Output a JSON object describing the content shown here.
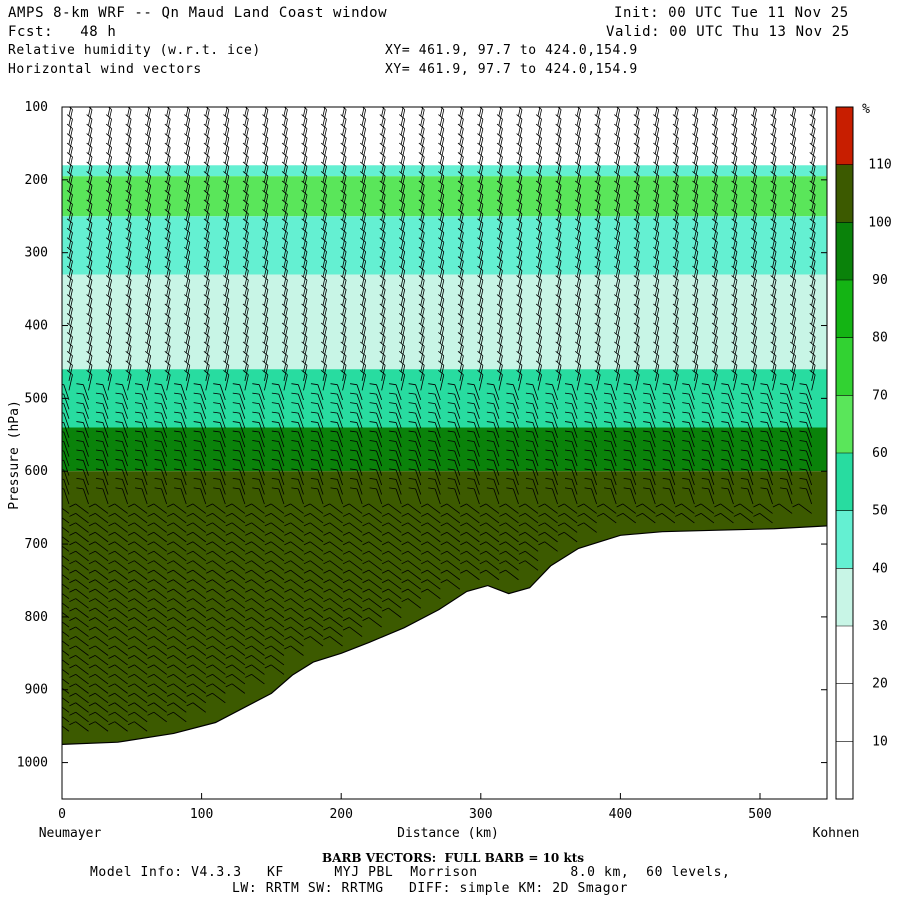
{
  "header": {
    "line1_left": "AMPS 8-km WRF -- Qn Maud Land Coast window",
    "line2_left": "Fcst:   48 h",
    "line3_left": "Relative humidity (w.r.t. ice)",
    "line4_left": "Horizontal wind vectors",
    "line1_right": "Init: 00 UTC Tue 11 Nov 25",
    "line2_right": "Valid: 00 UTC Thu 13 Nov 25",
    "line3_mid": "XY= 461.9, 97.7 to 424.0,154.9",
    "line4_mid": "XY= 461.9, 97.7 to 424.0,154.9"
  },
  "footer": {
    "barb_note": "BARB VECTORS:  FULL BARB = 10 kts",
    "model_info_1": "Model Info: V4.3.3   KF      MYJ PBL  Morrison           8.0 km,  60 levels,",
    "model_info_2": "LW: RRTM SW: RRTMG   DIFF: simple KM: 2D Smagor"
  },
  "chart_data": {
    "type": "heatmap",
    "variable": "Relative humidity (w.r.t. ice)",
    "overlay": "Horizontal wind vectors",
    "xlabel": "Distance (km)",
    "ylabel": "Pressure (hPa)",
    "x_start_label": "Neumayer",
    "x_end_label": "Kohnen",
    "xlim": [
      0,
      548
    ],
    "ylim": [
      1050,
      100
    ],
    "x_ticks": [
      "0",
      "100",
      "200",
      "300",
      "400",
      "500"
    ],
    "y_ticks": [
      "100",
      "200",
      "300",
      "400",
      "500",
      "600",
      "700",
      "800",
      "900",
      "1000"
    ],
    "colorbar": {
      "unit": "%",
      "labels": [
        "10",
        "20",
        "30",
        "40",
        "50",
        "60",
        "70",
        "80",
        "90",
        "100",
        "110"
      ],
      "bins": [
        {
          "lo": 0,
          "hi": 30,
          "color": "#ffffff"
        },
        {
          "lo": 30,
          "hi": 40,
          "color": "#c8f5e6"
        },
        {
          "lo": 40,
          "hi": 50,
          "color": "#64f0d2"
        },
        {
          "lo": 50,
          "hi": 60,
          "color": "#28dca0"
        },
        {
          "lo": 60,
          "hi": 70,
          "color": "#5ae65a"
        },
        {
          "lo": 70,
          "hi": 80,
          "color": "#32d232"
        },
        {
          "lo": 80,
          "hi": 90,
          "color": "#14b414"
        },
        {
          "lo": 90,
          "hi": 100,
          "color": "#0a820a"
        },
        {
          "lo": 100,
          "hi": 110,
          "color": "#3c5a00"
        },
        {
          "lo": 110,
          "hi": 120,
          "color": "#c81e00"
        }
      ]
    },
    "terrain_surface_hpa": [
      {
        "x": 0,
        "p": 975
      },
      {
        "x": 40,
        "p": 972
      },
      {
        "x": 80,
        "p": 960
      },
      {
        "x": 110,
        "p": 945
      },
      {
        "x": 130,
        "p": 925
      },
      {
        "x": 150,
        "p": 905
      },
      {
        "x": 165,
        "p": 880
      },
      {
        "x": 180,
        "p": 862
      },
      {
        "x": 200,
        "p": 850
      },
      {
        "x": 220,
        "p": 835
      },
      {
        "x": 245,
        "p": 815
      },
      {
        "x": 270,
        "p": 790
      },
      {
        "x": 290,
        "p": 765
      },
      {
        "x": 305,
        "p": 757
      },
      {
        "x": 320,
        "p": 768
      },
      {
        "x": 335,
        "p": 760
      },
      {
        "x": 350,
        "p": 730
      },
      {
        "x": 370,
        "p": 706
      },
      {
        "x": 400,
        "p": 688
      },
      {
        "x": 430,
        "p": 683
      },
      {
        "x": 470,
        "p": 681
      },
      {
        "x": 510,
        "p": 679
      },
      {
        "x": 548,
        "p": 675
      }
    ],
    "rh_layers": [
      {
        "p_top": 100,
        "p_bot": 180,
        "rh": 10
      },
      {
        "p_top": 180,
        "p_bot": 195,
        "rh": 45
      },
      {
        "p_top": 195,
        "p_bot": 250,
        "rh": 65
      },
      {
        "p_top": 250,
        "p_bot": 330,
        "rh": 45
      },
      {
        "p_top": 330,
        "p_bot": 460,
        "rh": 35
      },
      {
        "p_top": 460,
        "p_bot": 540,
        "rh": 55
      },
      {
        "p_top": 540,
        "p_bot": 600,
        "rh": 95
      },
      {
        "p_top": 600,
        "p_bot": 1050,
        "rh": 102
      }
    ]
  }
}
